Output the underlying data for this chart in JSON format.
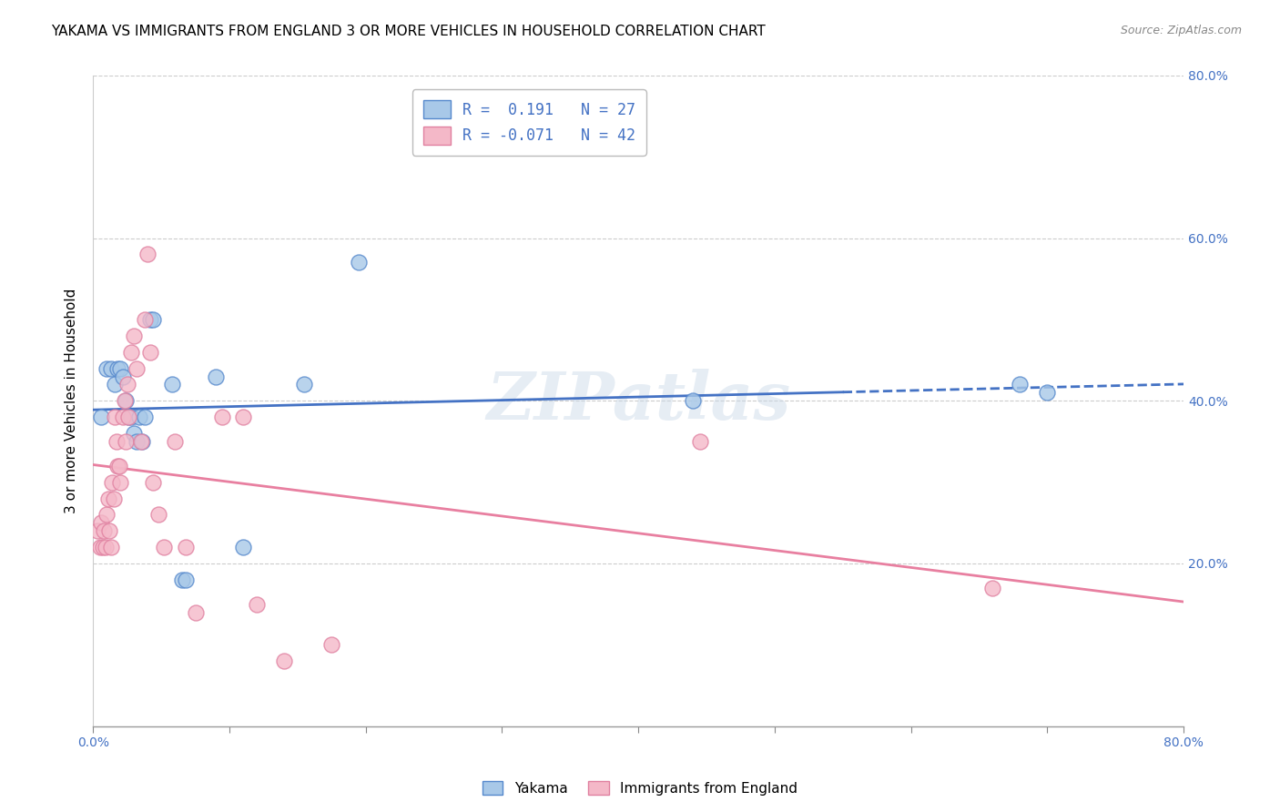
{
  "title": "YAKAMA VS IMMIGRANTS FROM ENGLAND 3 OR MORE VEHICLES IN HOUSEHOLD CORRELATION CHART",
  "source": "Source: ZipAtlas.com",
  "xmin": 0.0,
  "xmax": 0.8,
  "ymin": 0.0,
  "ymax": 0.8,
  "ylabel": "3 or more Vehicles in Household",
  "legend_label1": "Yakama",
  "legend_label2": "Immigrants from England",
  "R1": 0.191,
  "N1": 27,
  "R2": -0.071,
  "N2": 42,
  "blue_color": "#A8C8E8",
  "pink_color": "#F4B8C8",
  "blue_edge_color": "#5588CC",
  "pink_edge_color": "#E080A0",
  "blue_line_color": "#4472C4",
  "pink_line_color": "#E87FA0",
  "blue_scatter": [
    [
      0.006,
      0.38
    ],
    [
      0.01,
      0.44
    ],
    [
      0.013,
      0.44
    ],
    [
      0.016,
      0.42
    ],
    [
      0.018,
      0.44
    ],
    [
      0.02,
      0.44
    ],
    [
      0.022,
      0.43
    ],
    [
      0.024,
      0.4
    ],
    [
      0.026,
      0.38
    ],
    [
      0.028,
      0.38
    ],
    [
      0.03,
      0.36
    ],
    [
      0.032,
      0.35
    ],
    [
      0.034,
      0.38
    ],
    [
      0.036,
      0.35
    ],
    [
      0.038,
      0.38
    ],
    [
      0.042,
      0.5
    ],
    [
      0.044,
      0.5
    ],
    [
      0.058,
      0.42
    ],
    [
      0.065,
      0.18
    ],
    [
      0.068,
      0.18
    ],
    [
      0.09,
      0.43
    ],
    [
      0.11,
      0.22
    ],
    [
      0.155,
      0.42
    ],
    [
      0.195,
      0.57
    ],
    [
      0.44,
      0.4
    ],
    [
      0.68,
      0.42
    ],
    [
      0.7,
      0.41
    ]
  ],
  "pink_scatter": [
    [
      0.003,
      0.24
    ],
    [
      0.005,
      0.22
    ],
    [
      0.006,
      0.25
    ],
    [
      0.007,
      0.22
    ],
    [
      0.008,
      0.24
    ],
    [
      0.009,
      0.22
    ],
    [
      0.01,
      0.26
    ],
    [
      0.011,
      0.28
    ],
    [
      0.012,
      0.24
    ],
    [
      0.013,
      0.22
    ],
    [
      0.014,
      0.3
    ],
    [
      0.015,
      0.28
    ],
    [
      0.016,
      0.38
    ],
    [
      0.017,
      0.35
    ],
    [
      0.018,
      0.32
    ],
    [
      0.019,
      0.32
    ],
    [
      0.02,
      0.3
    ],
    [
      0.022,
      0.38
    ],
    [
      0.023,
      0.4
    ],
    [
      0.024,
      0.35
    ],
    [
      0.025,
      0.42
    ],
    [
      0.026,
      0.38
    ],
    [
      0.028,
      0.46
    ],
    [
      0.03,
      0.48
    ],
    [
      0.032,
      0.44
    ],
    [
      0.035,
      0.35
    ],
    [
      0.038,
      0.5
    ],
    [
      0.04,
      0.58
    ],
    [
      0.042,
      0.46
    ],
    [
      0.044,
      0.3
    ],
    [
      0.048,
      0.26
    ],
    [
      0.052,
      0.22
    ],
    [
      0.06,
      0.35
    ],
    [
      0.068,
      0.22
    ],
    [
      0.075,
      0.14
    ],
    [
      0.095,
      0.38
    ],
    [
      0.11,
      0.38
    ],
    [
      0.12,
      0.15
    ],
    [
      0.14,
      0.08
    ],
    [
      0.175,
      0.1
    ],
    [
      0.445,
      0.35
    ],
    [
      0.66,
      0.17
    ]
  ],
  "watermark": "ZIPatlas",
  "title_fontsize": 11,
  "tick_fontsize": 10,
  "label_fontsize": 11,
  "right_yticks": [
    0.2,
    0.4,
    0.6,
    0.8
  ],
  "right_ytick_labels": [
    "20.0%",
    "40.0%",
    "60.0%",
    "80.0%"
  ]
}
